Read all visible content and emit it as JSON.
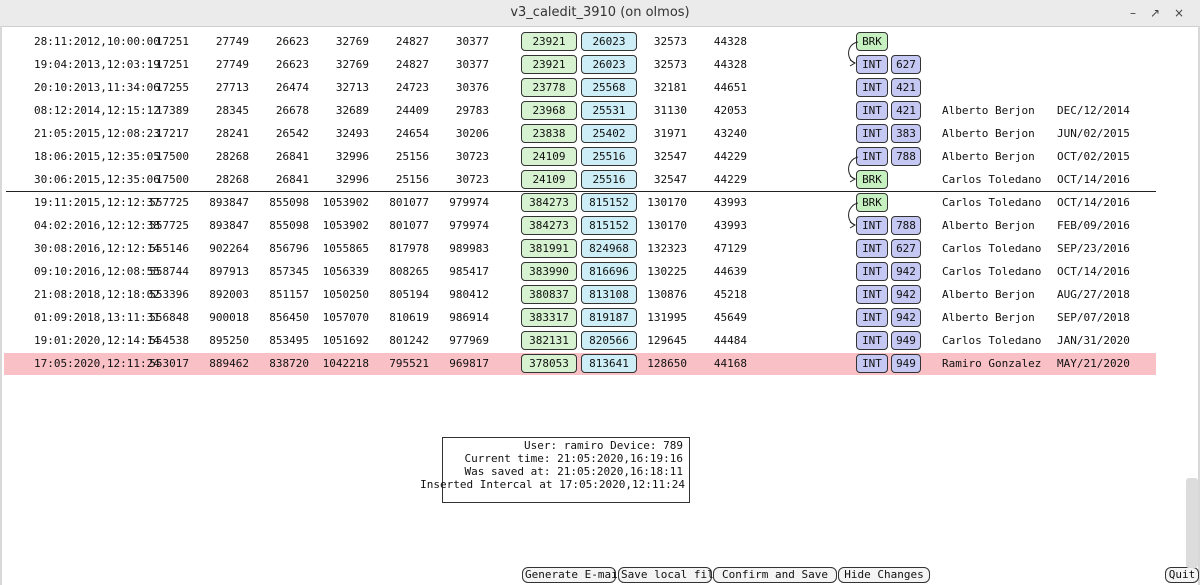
{
  "window": {
    "title": "v3_caledit_3910 (on olmos)",
    "minimize_label": "–",
    "maximize_label": "↗",
    "close_label": "×"
  },
  "rows": [
    {
      "ts": "28:11:2012,10:00:00",
      "v": [
        "17251",
        "27749",
        "26623",
        "32769",
        "24827",
        "30377"
      ],
      "g": "23921",
      "b": "26023",
      "v2": [
        "32573",
        "44328"
      ],
      "tag": "BRK",
      "num": "",
      "user": "",
      "date": ""
    },
    {
      "ts": "19:04:2013,12:03:19",
      "v": [
        "17251",
        "27749",
        "26623",
        "32769",
        "24827",
        "30377"
      ],
      "g": "23921",
      "b": "26023",
      "v2": [
        "32573",
        "44328"
      ],
      "tag": "INT",
      "num": "627",
      "user": "",
      "date": ""
    },
    {
      "ts": "20:10:2013,11:34:06",
      "v": [
        "17255",
        "27713",
        "26474",
        "32713",
        "24723",
        "30376"
      ],
      "g": "23778",
      "b": "25568",
      "v2": [
        "32181",
        "44651"
      ],
      "tag": "INT",
      "num": "421",
      "user": "",
      "date": ""
    },
    {
      "ts": "08:12:2014,12:15:12",
      "v": [
        "17389",
        "28345",
        "26678",
        "32689",
        "24409",
        "29783"
      ],
      "g": "23968",
      "b": "25531",
      "v2": [
        "31130",
        "42053"
      ],
      "tag": "INT",
      "num": "421",
      "user": "Alberto Berjon",
      "date": "DEC/12/2014"
    },
    {
      "ts": "21:05:2015,12:08:23",
      "v": [
        "17217",
        "28241",
        "26542",
        "32493",
        "24654",
        "30206"
      ],
      "g": "23838",
      "b": "25402",
      "v2": [
        "31971",
        "43240"
      ],
      "tag": "INT",
      "num": "383",
      "user": "Alberto Berjon",
      "date": "JUN/02/2015"
    },
    {
      "ts": "18:06:2015,12:35:05",
      "v": [
        "17500",
        "28268",
        "26841",
        "32996",
        "25156",
        "30723"
      ],
      "g": "24109",
      "b": "25516",
      "v2": [
        "32547",
        "44229"
      ],
      "tag": "INT",
      "num": "788",
      "user": "Alberto Berjon",
      "date": "OCT/02/2015"
    },
    {
      "ts": "30:06:2015,12:35:06",
      "v": [
        "17500",
        "28268",
        "26841",
        "32996",
        "25156",
        "30723"
      ],
      "g": "24109",
      "b": "25516",
      "v2": [
        "32547",
        "44229"
      ],
      "tag": "BRK",
      "num": "",
      "user": "Carlos Toledano",
      "date": "OCT/14/2016"
    },
    {
      "ts": "19:11:2015,12:12:37",
      "v": [
        "557725",
        "893847",
        "855098",
        "1053902",
        "801077",
        "979974"
      ],
      "g": "384273",
      "b": "815152",
      "v2": [
        "130170",
        "43993"
      ],
      "tag": "BRK",
      "num": "",
      "user": "Carlos Toledano",
      "date": "OCT/14/2016"
    },
    {
      "ts": "04:02:2016,12:12:38",
      "v": [
        "557725",
        "893847",
        "855098",
        "1053902",
        "801077",
        "979974"
      ],
      "g": "384273",
      "b": "815152",
      "v2": [
        "130170",
        "43993"
      ],
      "tag": "INT",
      "num": "788",
      "user": "Alberto Berjon",
      "date": "FEB/09/2016"
    },
    {
      "ts": "30:08:2016,12:12:14",
      "v": [
        "555146",
        "902264",
        "856796",
        "1055865",
        "817978",
        "989983"
      ],
      "g": "381991",
      "b": "824968",
      "v2": [
        "132323",
        "47129"
      ],
      "tag": "INT",
      "num": "627",
      "user": "Carlos Toledano",
      "date": "SEP/23/2016"
    },
    {
      "ts": "09:10:2016,12:08:55",
      "v": [
        "558744",
        "897913",
        "857345",
        "1056339",
        "808265",
        "985417"
      ],
      "g": "383990",
      "b": "816696",
      "v2": [
        "130225",
        "44639"
      ],
      "tag": "INT",
      "num": "942",
      "user": "Carlos Toledano",
      "date": "OCT/14/2016"
    },
    {
      "ts": "21:08:2018,12:18:02",
      "v": [
        "553396",
        "892003",
        "851157",
        "1050250",
        "805194",
        "980412"
      ],
      "g": "380837",
      "b": "813108",
      "v2": [
        "130876",
        "45218"
      ],
      "tag": "INT",
      "num": "942",
      "user": "Alberto Berjon",
      "date": "AUG/27/2018"
    },
    {
      "ts": "01:09:2018,13:11:31",
      "v": [
        "556848",
        "900018",
        "856450",
        "1057070",
        "810619",
        "986914"
      ],
      "g": "383317",
      "b": "819187",
      "v2": [
        "131995",
        "45649"
      ],
      "tag": "INT",
      "num": "942",
      "user": "Alberto Berjon",
      "date": "SEP/07/2018"
    },
    {
      "ts": "19:01:2020,12:14:14",
      "v": [
        "554538",
        "895250",
        "853495",
        "1051692",
        "801242",
        "977969"
      ],
      "g": "382131",
      "b": "820566",
      "v2": [
        "129645",
        "44484"
      ],
      "tag": "INT",
      "num": "949",
      "user": "Carlos Toledano",
      "date": "JAN/31/2020"
    },
    {
      "ts": "17:05:2020,12:11:24",
      "v": [
        "553017",
        "889462",
        "838720",
        "1042218",
        "795521",
        "969817"
      ],
      "g": "378053",
      "b": "813641",
      "v2": [
        "128650",
        "44168"
      ],
      "tag": "INT",
      "num": "949",
      "user": "Ramiro Gonzalez",
      "date": "MAY/21/2020"
    }
  ],
  "info": {
    "user_line": "User: ramiro Device: 789",
    "current_time": "Current time: 21:05:2020,16:19:16",
    "saved_at": "Was saved at: 21:05:2020,16:18:11",
    "inserted": "Inserted Intercal at 17:05:2020,12:11:24"
  },
  "buttons": {
    "generate_email": "Generate E-mail",
    "save_local": "Save local file",
    "confirm_save": "Confirm and Save",
    "hide_changes": "Hide Changes",
    "quit": "Quit"
  },
  "colors": {
    "highlight_row": "#f9c0c6",
    "green_pill": "#d6f2d0",
    "blue_pill": "#cdeef6",
    "int_tag": "#c5c8f3",
    "brk_tag": "#c7f0c1"
  }
}
